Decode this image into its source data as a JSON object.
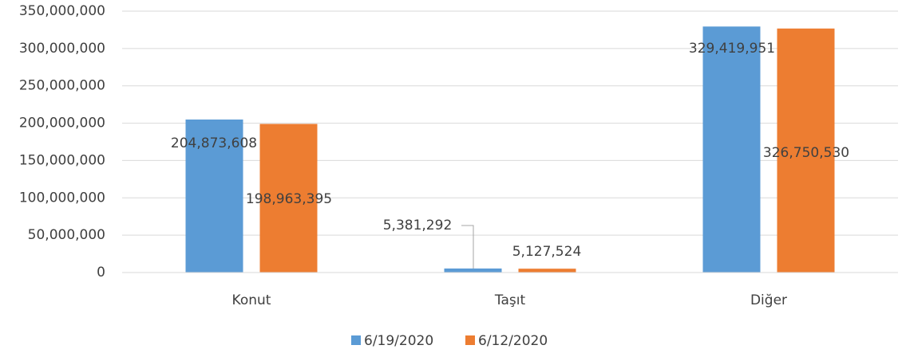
{
  "chart_data": {
    "type": "bar",
    "categories": [
      "Konut",
      "Taşıt",
      "Diğer"
    ],
    "series": [
      {
        "name": "6/19/2020",
        "color": "#5b9bd5",
        "values": [
          204873608,
          5381292,
          329419951
        ],
        "value_labels": [
          "204,873,608",
          "5,381,292",
          "329,419,951"
        ]
      },
      {
        "name": "6/12/2020",
        "color": "#ed7d31",
        "values": [
          198963395,
          5127524,
          326750530
        ],
        "value_labels": [
          "198,963,395",
          "5,127,524",
          "326,750,530"
        ]
      }
    ],
    "ylim": [
      0,
      350000000
    ],
    "yticks": [
      {
        "value": 0,
        "label": "0"
      },
      {
        "value": 50000000,
        "label": "50,000,000"
      },
      {
        "value": 100000000,
        "label": "100,000,000"
      },
      {
        "value": 150000000,
        "label": "150,000,000"
      },
      {
        "value": 200000000,
        "label": "200,000,000"
      },
      {
        "value": 250000000,
        "label": "250,000,000"
      },
      {
        "value": 300000000,
        "label": "300,000,000"
      },
      {
        "value": 350000000,
        "label": "350,000,000"
      }
    ],
    "grid": true,
    "legend": "bottom"
  }
}
